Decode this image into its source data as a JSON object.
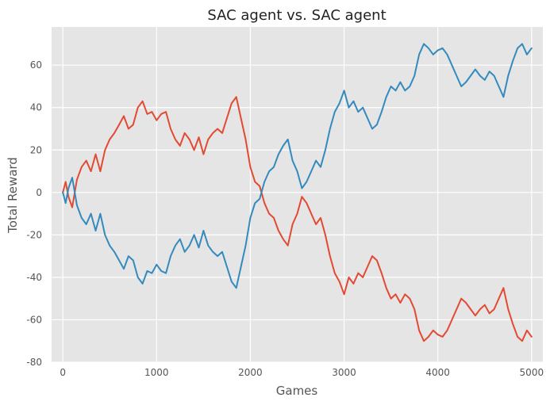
{
  "chart_data": {
    "type": "line",
    "title": "SAC agent vs. SAC agent",
    "xlabel": "Games",
    "ylabel": "Total Reward",
    "xlim": [
      -120,
      5120
    ],
    "ylim": [
      -80,
      78
    ],
    "xticks": [
      0,
      1000,
      2000,
      3000,
      4000,
      5000
    ],
    "yticks": [
      -80,
      -60,
      -40,
      -20,
      0,
      20,
      40,
      60
    ],
    "grid": true,
    "background": "#E5E5E5",
    "legend": "none",
    "series": [
      {
        "color": "#E24A33",
        "points": [
          [
            0,
            0
          ],
          [
            30,
            5
          ],
          [
            60,
            -2
          ],
          [
            100,
            -7
          ],
          [
            150,
            6
          ],
          [
            200,
            12
          ],
          [
            250,
            15
          ],
          [
            300,
            10
          ],
          [
            350,
            18
          ],
          [
            400,
            10
          ],
          [
            450,
            20
          ],
          [
            500,
            25
          ],
          [
            550,
            28
          ],
          [
            600,
            32
          ],
          [
            650,
            36
          ],
          [
            700,
            30
          ],
          [
            750,
            32
          ],
          [
            800,
            40
          ],
          [
            850,
            43
          ],
          [
            900,
            37
          ],
          [
            950,
            38
          ],
          [
            1000,
            34
          ],
          [
            1050,
            37
          ],
          [
            1100,
            38
          ],
          [
            1150,
            30
          ],
          [
            1200,
            25
          ],
          [
            1250,
            22
          ],
          [
            1300,
            28
          ],
          [
            1350,
            25
          ],
          [
            1400,
            20
          ],
          [
            1450,
            26
          ],
          [
            1500,
            18
          ],
          [
            1550,
            25
          ],
          [
            1600,
            28
          ],
          [
            1650,
            30
          ],
          [
            1700,
            28
          ],
          [
            1750,
            35
          ],
          [
            1800,
            42
          ],
          [
            1850,
            45
          ],
          [
            1900,
            35
          ],
          [
            1950,
            25
          ],
          [
            2000,
            12
          ],
          [
            2050,
            5
          ],
          [
            2100,
            3
          ],
          [
            2150,
            -5
          ],
          [
            2200,
            -10
          ],
          [
            2250,
            -12
          ],
          [
            2300,
            -18
          ],
          [
            2350,
            -22
          ],
          [
            2400,
            -25
          ],
          [
            2450,
            -15
          ],
          [
            2500,
            -10
          ],
          [
            2550,
            -2
          ],
          [
            2600,
            -5
          ],
          [
            2650,
            -10
          ],
          [
            2700,
            -15
          ],
          [
            2750,
            -12
          ],
          [
            2800,
            -20
          ],
          [
            2850,
            -30
          ],
          [
            2900,
            -38
          ],
          [
            2950,
            -42
          ],
          [
            3000,
            -48
          ],
          [
            3050,
            -40
          ],
          [
            3100,
            -43
          ],
          [
            3150,
            -38
          ],
          [
            3200,
            -40
          ],
          [
            3250,
            -35
          ],
          [
            3300,
            -30
          ],
          [
            3350,
            -32
          ],
          [
            3400,
            -38
          ],
          [
            3450,
            -45
          ],
          [
            3500,
            -50
          ],
          [
            3550,
            -48
          ],
          [
            3600,
            -52
          ],
          [
            3650,
            -48
          ],
          [
            3700,
            -50
          ],
          [
            3750,
            -55
          ],
          [
            3800,
            -65
          ],
          [
            3850,
            -70
          ],
          [
            3900,
            -68
          ],
          [
            3950,
            -65
          ],
          [
            4000,
            -67
          ],
          [
            4050,
            -68
          ],
          [
            4100,
            -65
          ],
          [
            4150,
            -60
          ],
          [
            4200,
            -55
          ],
          [
            4250,
            -50
          ],
          [
            4300,
            -52
          ],
          [
            4350,
            -55
          ],
          [
            4400,
            -58
          ],
          [
            4450,
            -55
          ],
          [
            4500,
            -53
          ],
          [
            4550,
            -57
          ],
          [
            4600,
            -55
          ],
          [
            4650,
            -50
          ],
          [
            4700,
            -45
          ],
          [
            4750,
            -55
          ],
          [
            4800,
            -62
          ],
          [
            4850,
            -68
          ],
          [
            4900,
            -70
          ],
          [
            4950,
            -65
          ],
          [
            5000,
            -68
          ]
        ]
      },
      {
        "color": "#348ABD",
        "points": [
          [
            0,
            0
          ],
          [
            30,
            -5
          ],
          [
            60,
            2
          ],
          [
            100,
            7
          ],
          [
            150,
            -6
          ],
          [
            200,
            -12
          ],
          [
            250,
            -15
          ],
          [
            300,
            -10
          ],
          [
            350,
            -18
          ],
          [
            400,
            -10
          ],
          [
            450,
            -20
          ],
          [
            500,
            -25
          ],
          [
            550,
            -28
          ],
          [
            600,
            -32
          ],
          [
            650,
            -36
          ],
          [
            700,
            -30
          ],
          [
            750,
            -32
          ],
          [
            800,
            -40
          ],
          [
            850,
            -43
          ],
          [
            900,
            -37
          ],
          [
            950,
            -38
          ],
          [
            1000,
            -34
          ],
          [
            1050,
            -37
          ],
          [
            1100,
            -38
          ],
          [
            1150,
            -30
          ],
          [
            1200,
            -25
          ],
          [
            1250,
            -22
          ],
          [
            1300,
            -28
          ],
          [
            1350,
            -25
          ],
          [
            1400,
            -20
          ],
          [
            1450,
            -26
          ],
          [
            1500,
            -18
          ],
          [
            1550,
            -25
          ],
          [
            1600,
            -28
          ],
          [
            1650,
            -30
          ],
          [
            1700,
            -28
          ],
          [
            1750,
            -35
          ],
          [
            1800,
            -42
          ],
          [
            1850,
            -45
          ],
          [
            1900,
            -35
          ],
          [
            1950,
            -25
          ],
          [
            2000,
            -12
          ],
          [
            2050,
            -5
          ],
          [
            2100,
            -3
          ],
          [
            2150,
            5
          ],
          [
            2200,
            10
          ],
          [
            2250,
            12
          ],
          [
            2300,
            18
          ],
          [
            2350,
            22
          ],
          [
            2400,
            25
          ],
          [
            2450,
            15
          ],
          [
            2500,
            10
          ],
          [
            2550,
            2
          ],
          [
            2600,
            5
          ],
          [
            2650,
            10
          ],
          [
            2700,
            15
          ],
          [
            2750,
            12
          ],
          [
            2800,
            20
          ],
          [
            2850,
            30
          ],
          [
            2900,
            38
          ],
          [
            2950,
            42
          ],
          [
            3000,
            48
          ],
          [
            3050,
            40
          ],
          [
            3100,
            43
          ],
          [
            3150,
            38
          ],
          [
            3200,
            40
          ],
          [
            3250,
            35
          ],
          [
            3300,
            30
          ],
          [
            3350,
            32
          ],
          [
            3400,
            38
          ],
          [
            3450,
            45
          ],
          [
            3500,
            50
          ],
          [
            3550,
            48
          ],
          [
            3600,
            52
          ],
          [
            3650,
            48
          ],
          [
            3700,
            50
          ],
          [
            3750,
            55
          ],
          [
            3800,
            65
          ],
          [
            3850,
            70
          ],
          [
            3900,
            68
          ],
          [
            3950,
            65
          ],
          [
            4000,
            67
          ],
          [
            4050,
            68
          ],
          [
            4100,
            65
          ],
          [
            4150,
            60
          ],
          [
            4200,
            55
          ],
          [
            4250,
            50
          ],
          [
            4300,
            52
          ],
          [
            4350,
            55
          ],
          [
            4400,
            58
          ],
          [
            4450,
            55
          ],
          [
            4500,
            53
          ],
          [
            4550,
            57
          ],
          [
            4600,
            55
          ],
          [
            4650,
            50
          ],
          [
            4700,
            45
          ],
          [
            4750,
            55
          ],
          [
            4800,
            62
          ],
          [
            4850,
            68
          ],
          [
            4900,
            70
          ],
          [
            4950,
            65
          ],
          [
            5000,
            68
          ]
        ]
      }
    ]
  }
}
